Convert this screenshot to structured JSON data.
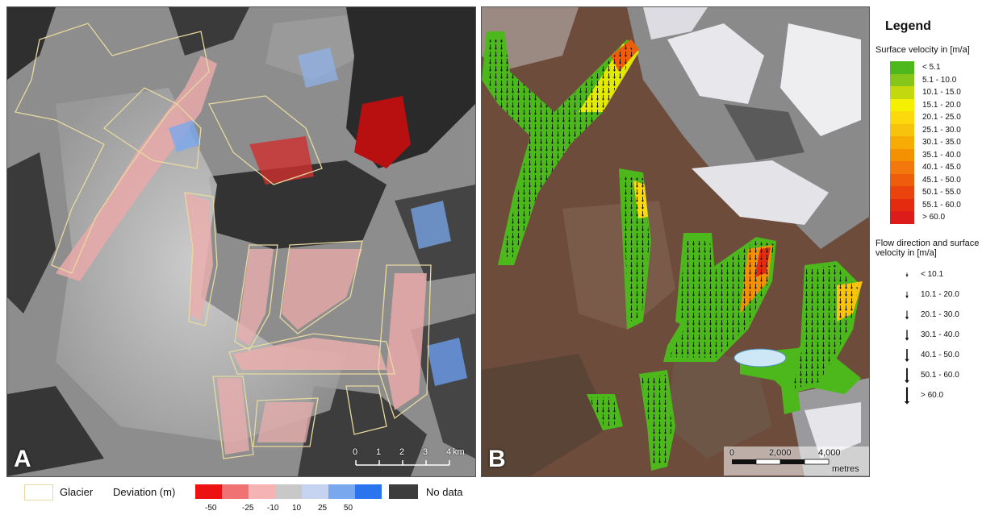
{
  "panel_a": {
    "letter": "A",
    "scale": {
      "ticks": [
        "0",
        "1",
        "2",
        "3",
        "4"
      ],
      "unit": "km"
    }
  },
  "panel_b": {
    "letter": "B",
    "scale": {
      "ticks": [
        "0",
        "2,000",
        "4,000"
      ],
      "unit": "metres"
    }
  },
  "legend_b": {
    "title": "Legend",
    "velocity_title": "Surface velocity in [m/a]",
    "velocity_classes": [
      {
        "label": "< 5.1",
        "color": "#4cb81c"
      },
      {
        "label": "5.1 - 10.0",
        "color": "#86c61a"
      },
      {
        "label": "10.1 - 15.0",
        "color": "#c4d80e"
      },
      {
        "label": "15.1 - 20.0",
        "color": "#f4f000"
      },
      {
        "label": "20.1 - 25.0",
        "color": "#fbd90d"
      },
      {
        "label": "25.1 - 30.0",
        "color": "#f8c30c"
      },
      {
        "label": "30.1 - 35.0",
        "color": "#f7ab05"
      },
      {
        "label": "35.1 - 40.0",
        "color": "#f49103"
      },
      {
        "label": "40.1 - 45.0",
        "color": "#f2770c"
      },
      {
        "label": "45.1 - 50.0",
        "color": "#ee5d0b"
      },
      {
        "label": "50.1 - 55.0",
        "color": "#ea430e"
      },
      {
        "label": "55.1 - 60.0",
        "color": "#e42b10"
      },
      {
        "label": "> 60.0",
        "color": "#dd1b1a"
      }
    ],
    "flow_title": "Flow direction and surface velocity in [m/a]",
    "flow_classes": [
      "< 10.1",
      "10.1 - 20.0",
      "20.1 - 30.0",
      "30.1 - 40.0",
      "40.1 - 50.0",
      "50.1 - 60.0",
      "> 60.0"
    ]
  },
  "legend_a": {
    "glacier_label": "Glacier",
    "glacier_color": "#e8d9a0",
    "deviation_label": "Deviation (m)",
    "deviation_colors": [
      "#ee1111",
      "#f07272",
      "#f5b3b3",
      "#c8c8c8",
      "#c5d2f0",
      "#7aa8ee",
      "#2a74ee"
    ],
    "deviation_ticks": [
      "-50",
      "-25",
      "-10",
      "10",
      "25",
      "50"
    ],
    "nodata_label": "No data",
    "nodata_color": "#3c3c3c"
  }
}
